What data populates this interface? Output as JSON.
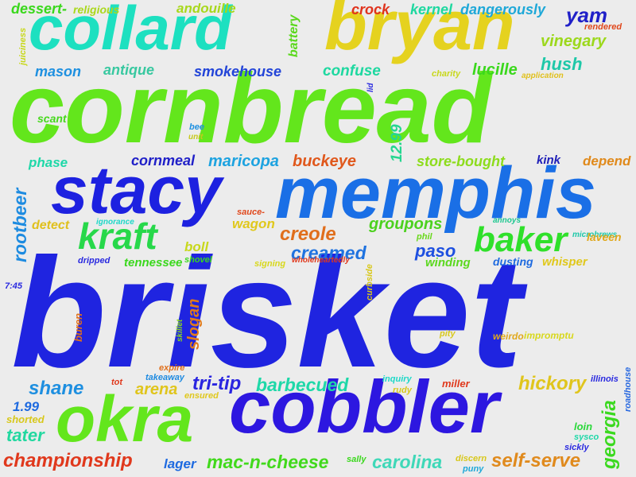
{
  "words": [
    {
      "text": "brisket",
      "color": "#1f24e0"
    },
    {
      "text": "cornbread",
      "color": "#63e61c"
    },
    {
      "text": "memphis",
      "color": "#1a6fe6"
    },
    {
      "text": "stacy",
      "color": "#1d21e0"
    },
    {
      "text": "bryan",
      "color": "#e5d21f"
    },
    {
      "text": "collard",
      "color": "#1de0c0"
    },
    {
      "text": "cobbler",
      "color": "#2d17e0"
    },
    {
      "text": "okra",
      "color": "#63e61c"
    },
    {
      "text": "kraft",
      "color": "#27d84a"
    },
    {
      "text": "baker",
      "color": "#2fe02a"
    },
    {
      "text": "championship",
      "color": "#e0381c"
    },
    {
      "text": "mac-n-cheese",
      "color": "#41d91c"
    },
    {
      "text": "self-serve",
      "color": "#e08a1d"
    },
    {
      "text": "carolina",
      "color": "#3fd8b8"
    },
    {
      "text": "georgia",
      "color": "#3ad91e"
    },
    {
      "text": "hickory",
      "color": "#e0c51c"
    },
    {
      "text": "barbecued",
      "color": "#1ed8a8"
    },
    {
      "text": "tri-tip",
      "color": "#2a25e0"
    },
    {
      "text": "arena",
      "color": "#e0c51c"
    },
    {
      "text": "shane",
      "color": "#1e8fe0"
    },
    {
      "text": "tater",
      "color": "#22d8a0"
    },
    {
      "text": "creole",
      "color": "#e06e1c"
    },
    {
      "text": "creamed",
      "color": "#1f73e0"
    },
    {
      "text": "groupons",
      "color": "#4cd11e"
    },
    {
      "text": "paso",
      "color": "#1d4fe0"
    },
    {
      "text": "winding",
      "color": "#5bd81e"
    },
    {
      "text": "slogan",
      "color": "#e07a1c"
    },
    {
      "text": "rootbeer",
      "color": "#1d8be0"
    },
    {
      "text": "cornmeal",
      "color": "#2020c8"
    },
    {
      "text": "maricopa",
      "color": "#1ea3e0"
    },
    {
      "text": "buckeye",
      "color": "#e0581c"
    },
    {
      "text": "store-bought",
      "color": "#8ddc1c"
    },
    {
      "text": "depend",
      "color": "#e08a1c"
    },
    {
      "text": "12.99",
      "color": "#25d690"
    },
    {
      "text": "kink",
      "color": "#2020b8"
    },
    {
      "text": "smokehouse",
      "color": "#2244d8"
    },
    {
      "text": "antique",
      "color": "#38c8a0"
    },
    {
      "text": "mason",
      "color": "#1e90e0"
    },
    {
      "text": "confuse",
      "color": "#1ed8a0"
    },
    {
      "text": "lucille",
      "color": "#3ad81c"
    },
    {
      "text": "hush",
      "color": "#1ec8a8"
    },
    {
      "text": "vinegary",
      "color": "#9cd81c"
    },
    {
      "text": "yam",
      "color": "#2020c8"
    },
    {
      "text": "crock",
      "color": "#e0321c"
    },
    {
      "text": "kernel",
      "color": "#1ed8a0"
    },
    {
      "text": "dangerously",
      "color": "#1ea8d8"
    },
    {
      "text": "dessert-",
      "color": "#3ad81c"
    },
    {
      "text": "religious",
      "color": "#aad81c"
    },
    {
      "text": "andouille",
      "color": "#a8d81c"
    },
    {
      "text": "battery",
      "color": "#5ad81c"
    },
    {
      "text": "rendered",
      "color": "#e0481c"
    },
    {
      "text": "juiciness",
      "color": "#c8d81c"
    },
    {
      "text": "charity",
      "color": "#c8d81c"
    },
    {
      "text": "application",
      "color": "#e0c01c"
    },
    {
      "text": "lid",
      "color": "#2a2ae0"
    },
    {
      "text": "scant",
      "color": "#46d81c"
    },
    {
      "text": "bee",
      "color": "#1e90e0"
    },
    {
      "text": "unit",
      "color": "#c8c81c"
    },
    {
      "text": "phase",
      "color": "#1ed8a8"
    },
    {
      "text": "detect",
      "color": "#e0c01c"
    },
    {
      "text": "ignorance",
      "color": "#1ed8c8"
    },
    {
      "text": "sauce-",
      "color": "#e0481c"
    },
    {
      "text": "wagon",
      "color": "#e0c81c"
    },
    {
      "text": "boll",
      "color": "#c8d81c"
    },
    {
      "text": "dripped",
      "color": "#2a2ae0"
    },
    {
      "text": "tennessee",
      "color": "#3ad81c"
    },
    {
      "text": "shovel",
      "color": "#3ad81c"
    },
    {
      "text": "signing",
      "color": "#d8d81c"
    },
    {
      "text": "wholeheartedly",
      "color": "#e0381c"
    },
    {
      "text": "phil",
      "color": "#6ad81c"
    },
    {
      "text": "annoys",
      "color": "#1ec890"
    },
    {
      "text": "microbrews",
      "color": "#1ec8a8"
    },
    {
      "text": "laveen",
      "color": "#e0a81c"
    },
    {
      "text": "dusting",
      "color": "#1e6ae0"
    },
    {
      "text": "whisper",
      "color": "#e0c81c"
    },
    {
      "text": "7:45",
      "color": "#2a2ae0"
    },
    {
      "text": "curbside",
      "color": "#d8c81c"
    },
    {
      "text": "buren",
      "color": "#e0701c"
    },
    {
      "text": "skillet",
      "color": "#8ad81c"
    },
    {
      "text": "pity",
      "color": "#d8c81c"
    },
    {
      "text": "weirdo",
      "color": "#e0a81c"
    },
    {
      "text": "impromptu",
      "color": "#d8d81c"
    },
    {
      "text": "expire",
      "color": "#e0701c"
    },
    {
      "text": "takeaway",
      "color": "#1e8ae0"
    },
    {
      "text": "tot",
      "color": "#e0381c"
    },
    {
      "text": "ensured",
      "color": "#e0c81c"
    },
    {
      "text": "inquiry",
      "color": "#1ed8c8"
    },
    {
      "text": "rudy",
      "color": "#d8c81c"
    },
    {
      "text": "miller",
      "color": "#e0381c"
    },
    {
      "text": "illinois",
      "color": "#2a2ae0"
    },
    {
      "text": "roadhouse",
      "color": "#2a6ae0"
    },
    {
      "text": "1.99",
      "color": "#1e6ae0"
    },
    {
      "text": "shorted",
      "color": "#d8c81c"
    },
    {
      "text": "lager",
      "color": "#1e6ae0"
    },
    {
      "text": "sally",
      "color": "#3ad81c"
    },
    {
      "text": "discern",
      "color": "#d8c81c"
    },
    {
      "text": "puny",
      "color": "#1ea8d8"
    },
    {
      "text": "loin",
      "color": "#2ad83a"
    },
    {
      "text": "sysco",
      "color": "#1ed8a8"
    },
    {
      "text": "sickly",
      "color": "#2a2ae0"
    }
  ]
}
